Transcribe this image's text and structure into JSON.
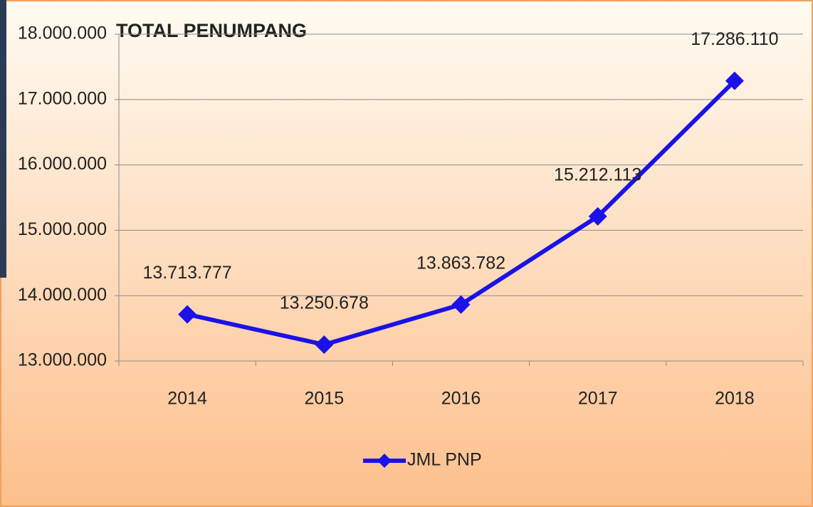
{
  "chart_data": {
    "type": "line",
    "title": "TOTAL PENUMPANG",
    "categories": [
      "2014",
      "2015",
      "2016",
      "2017",
      "2018"
    ],
    "series": [
      {
        "name": "JML PNP",
        "color": "#1a12e8",
        "values": [
          13713777,
          13250678,
          13863782,
          15212113,
          17286110
        ],
        "value_labels": [
          "13.713.777",
          "13.250.678",
          "13.863.782",
          "15.212.113",
          "17.286.110"
        ]
      }
    ],
    "ylim": [
      13000000,
      18000000
    ],
    "yticks": [
      {
        "value": 13000000,
        "label": "13.000.000"
      },
      {
        "value": 14000000,
        "label": "14.000.000"
      },
      {
        "value": 15000000,
        "label": "15.000.000"
      },
      {
        "value": 16000000,
        "label": "16.000.000"
      },
      {
        "value": 17000000,
        "label": "17.000.000"
      },
      {
        "value": 18000000,
        "label": "18.000.000"
      }
    ],
    "grid": true,
    "legend": "bottom"
  }
}
